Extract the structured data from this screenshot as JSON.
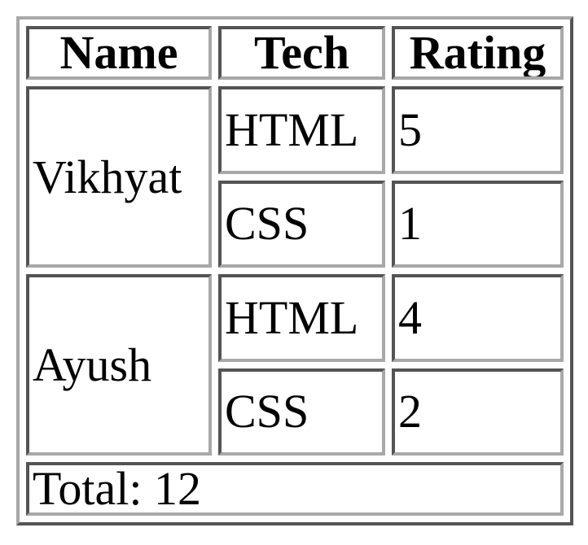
{
  "table": {
    "headers": {
      "name": "Name",
      "tech": "Tech",
      "rating": "Rating"
    },
    "groups": [
      {
        "name": "Vikhyat",
        "rows": [
          {
            "tech": "HTML",
            "rating": "5"
          },
          {
            "tech": "CSS",
            "rating": "1"
          }
        ]
      },
      {
        "name": "Ayush",
        "rows": [
          {
            "tech": "HTML",
            "rating": "4"
          },
          {
            "tech": "CSS",
            "rating": "2"
          }
        ]
      }
    ],
    "footer": "Total: 12"
  },
  "colors": {
    "border": "#a8a8a8",
    "text": "#000000",
    "background": "#ffffff"
  }
}
